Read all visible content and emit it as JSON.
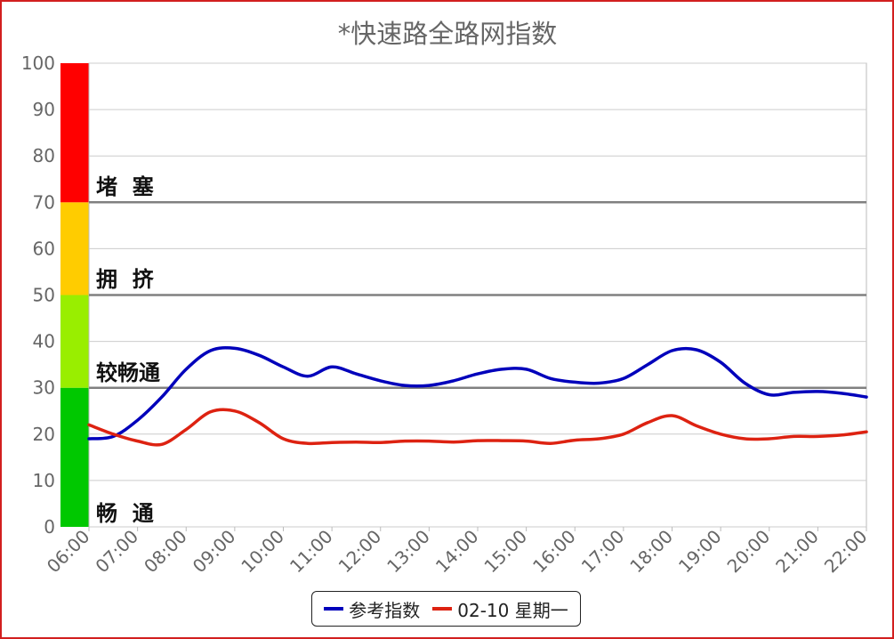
{
  "chart_data": {
    "type": "line",
    "title": "*快速路全路网指数",
    "xlabel": "",
    "ylabel": "",
    "x": [
      "06:00",
      "07:00",
      "08:00",
      "09:00",
      "10:00",
      "11:00",
      "12:00",
      "13:00",
      "14:00",
      "15:00",
      "16:00",
      "17:00",
      "18:00",
      "19:00",
      "20:00",
      "21:00",
      "22:00"
    ],
    "ylim": [
      0,
      100
    ],
    "yticks": [
      0,
      10,
      20,
      30,
      40,
      50,
      60,
      70,
      80,
      90,
      100
    ],
    "grid": true,
    "legend_position": "bottom",
    "bands": [
      {
        "label": "畅  通",
        "from": 0,
        "to": 30,
        "color": "#00c800"
      },
      {
        "label": "较畅通",
        "from": 30,
        "to": 50,
        "color": "#99ee00"
      },
      {
        "label": "拥  挤",
        "from": 50,
        "to": 70,
        "color": "#ffcc00"
      },
      {
        "label": "堵  塞",
        "from": 70,
        "to": 100,
        "color": "#ff0000"
      }
    ],
    "thresholds": [
      30,
      50,
      70
    ],
    "series": [
      {
        "name": "参考指数",
        "color": "#0000bb",
        "x": [
          6.0,
          6.5,
          7.0,
          7.5,
          8.0,
          8.5,
          9.0,
          9.5,
          10.0,
          10.5,
          11.0,
          11.5,
          12.0,
          12.5,
          13.0,
          13.5,
          14.0,
          14.5,
          15.0,
          15.5,
          16.0,
          16.5,
          17.0,
          17.5,
          18.0,
          18.5,
          19.0,
          19.5,
          20.0,
          20.5,
          21.0,
          21.5,
          22.0
        ],
        "values": [
          19,
          19.5,
          23,
          28,
          34,
          38,
          38.5,
          37,
          34.5,
          32.5,
          34.5,
          33,
          31.5,
          30.5,
          30.5,
          31.5,
          33,
          34,
          34,
          32,
          31.2,
          31,
          32,
          35,
          38,
          38.2,
          35.5,
          31,
          28.5,
          29,
          29.2,
          28.8,
          28
        ]
      },
      {
        "name": "02-10 星期一",
        "color": "#dd2211",
        "x": [
          6.0,
          6.5,
          7.0,
          7.5,
          8.0,
          8.5,
          9.0,
          9.5,
          10.0,
          10.5,
          11.0,
          11.5,
          12.0,
          12.5,
          13.0,
          13.5,
          14.0,
          14.5,
          15.0,
          15.5,
          16.0,
          16.5,
          17.0,
          17.5,
          18.0,
          18.5,
          19.0,
          19.5,
          20.0,
          20.5,
          21.0,
          21.5,
          22.0
        ],
        "values": [
          22,
          20,
          18.5,
          17.8,
          21,
          24.8,
          25,
          22.5,
          19,
          18,
          18.2,
          18.3,
          18.2,
          18.5,
          18.5,
          18.3,
          18.6,
          18.6,
          18.5,
          18,
          18.7,
          19,
          20,
          22.5,
          24,
          21.8,
          20,
          19,
          19,
          19.5,
          19.5,
          19.8,
          20.5
        ]
      }
    ]
  }
}
